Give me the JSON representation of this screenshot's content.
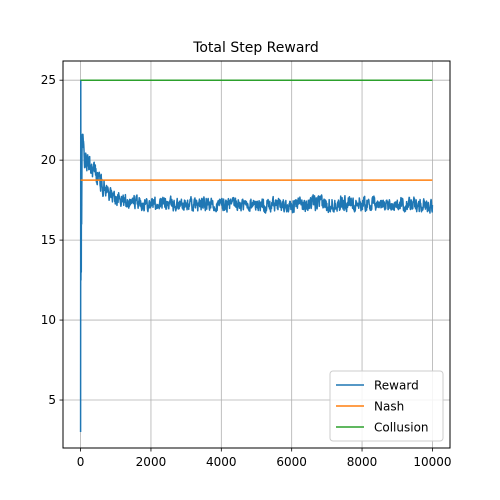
{
  "chart_data": {
    "type": "line",
    "title": "Total Step Reward",
    "xlabel": "",
    "ylabel": "",
    "xlim": [
      -500,
      10500
    ],
    "ylim": [
      2.0,
      26.2
    ],
    "xticks": [
      0,
      2000,
      4000,
      6000,
      8000,
      10000
    ],
    "yticks": [
      5,
      10,
      15,
      20,
      25
    ],
    "grid": true,
    "legend_position": "lower-right",
    "series": [
      {
        "name": "Reward",
        "color": "#1f77b4",
        "kind": "noisy",
        "x": [
          0,
          5,
          10,
          15,
          20,
          25,
          30,
          40,
          50,
          75,
          100,
          150,
          200,
          300,
          400,
          500,
          600,
          800,
          1000,
          1200,
          1500,
          2000,
          3000,
          4000,
          5000,
          6000,
          7000,
          8000,
          9000,
          10000
        ],
        "y": [
          3.0,
          25.0,
          12.5,
          20.5,
          13.0,
          21.5,
          16.0,
          20.5,
          21.5,
          20.8,
          20.3,
          20.0,
          19.8,
          19.6,
          19.3,
          19.0,
          18.5,
          18.0,
          17.6,
          17.5,
          17.4,
          17.3,
          17.2,
          17.2,
          17.2,
          17.2,
          17.3,
          17.3,
          17.2,
          17.2
        ],
        "noise": [
          0,
          0,
          0,
          0,
          0,
          0,
          0,
          0.7,
          0.7,
          0.6,
          0.6,
          0.6,
          0.5,
          0.5,
          0.5,
          0.5,
          0.5,
          0.4,
          0.35,
          0.35,
          0.35,
          0.35,
          0.35,
          0.35,
          0.35,
          0.35,
          0.4,
          0.4,
          0.35,
          0.35
        ]
      },
      {
        "name": "Nash",
        "color": "#ff7f0e",
        "kind": "line",
        "x": [
          0,
          10000
        ],
        "y": [
          18.75,
          18.75
        ]
      },
      {
        "name": "Collusion",
        "color": "#2ca02c",
        "kind": "line",
        "x": [
          0,
          10000
        ],
        "y": [
          25.0,
          25.0
        ]
      }
    ]
  }
}
